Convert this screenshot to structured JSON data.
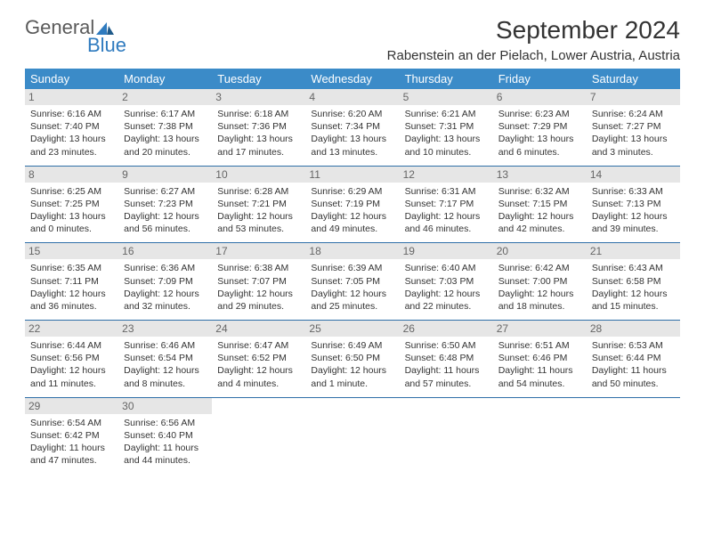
{
  "logo": {
    "general": "General",
    "blue": "Blue"
  },
  "title": "September 2024",
  "location": "Rabenstein an der Pielach, Lower Austria, Austria",
  "header_bg": "#3b8bc8",
  "daynum_bg": "#e6e6e6",
  "border_color": "#2f6fa8",
  "weekdays": [
    "Sunday",
    "Monday",
    "Tuesday",
    "Wednesday",
    "Thursday",
    "Friday",
    "Saturday"
  ],
  "days": [
    {
      "n": "1",
      "sr": "6:16 AM",
      "ss": "7:40 PM",
      "dl": "13 hours and 23 minutes."
    },
    {
      "n": "2",
      "sr": "6:17 AM",
      "ss": "7:38 PM",
      "dl": "13 hours and 20 minutes."
    },
    {
      "n": "3",
      "sr": "6:18 AM",
      "ss": "7:36 PM",
      "dl": "13 hours and 17 minutes."
    },
    {
      "n": "4",
      "sr": "6:20 AM",
      "ss": "7:34 PM",
      "dl": "13 hours and 13 minutes."
    },
    {
      "n": "5",
      "sr": "6:21 AM",
      "ss": "7:31 PM",
      "dl": "13 hours and 10 minutes."
    },
    {
      "n": "6",
      "sr": "6:23 AM",
      "ss": "7:29 PM",
      "dl": "13 hours and 6 minutes."
    },
    {
      "n": "7",
      "sr": "6:24 AM",
      "ss": "7:27 PM",
      "dl": "13 hours and 3 minutes."
    },
    {
      "n": "8",
      "sr": "6:25 AM",
      "ss": "7:25 PM",
      "dl": "13 hours and 0 minutes."
    },
    {
      "n": "9",
      "sr": "6:27 AM",
      "ss": "7:23 PM",
      "dl": "12 hours and 56 minutes."
    },
    {
      "n": "10",
      "sr": "6:28 AM",
      "ss": "7:21 PM",
      "dl": "12 hours and 53 minutes."
    },
    {
      "n": "11",
      "sr": "6:29 AM",
      "ss": "7:19 PM",
      "dl": "12 hours and 49 minutes."
    },
    {
      "n": "12",
      "sr": "6:31 AM",
      "ss": "7:17 PM",
      "dl": "12 hours and 46 minutes."
    },
    {
      "n": "13",
      "sr": "6:32 AM",
      "ss": "7:15 PM",
      "dl": "12 hours and 42 minutes."
    },
    {
      "n": "14",
      "sr": "6:33 AM",
      "ss": "7:13 PM",
      "dl": "12 hours and 39 minutes."
    },
    {
      "n": "15",
      "sr": "6:35 AM",
      "ss": "7:11 PM",
      "dl": "12 hours and 36 minutes."
    },
    {
      "n": "16",
      "sr": "6:36 AM",
      "ss": "7:09 PM",
      "dl": "12 hours and 32 minutes."
    },
    {
      "n": "17",
      "sr": "6:38 AM",
      "ss": "7:07 PM",
      "dl": "12 hours and 29 minutes."
    },
    {
      "n": "18",
      "sr": "6:39 AM",
      "ss": "7:05 PM",
      "dl": "12 hours and 25 minutes."
    },
    {
      "n": "19",
      "sr": "6:40 AM",
      "ss": "7:03 PM",
      "dl": "12 hours and 22 minutes."
    },
    {
      "n": "20",
      "sr": "6:42 AM",
      "ss": "7:00 PM",
      "dl": "12 hours and 18 minutes."
    },
    {
      "n": "21",
      "sr": "6:43 AM",
      "ss": "6:58 PM",
      "dl": "12 hours and 15 minutes."
    },
    {
      "n": "22",
      "sr": "6:44 AM",
      "ss": "6:56 PM",
      "dl": "12 hours and 11 minutes."
    },
    {
      "n": "23",
      "sr": "6:46 AM",
      "ss": "6:54 PM",
      "dl": "12 hours and 8 minutes."
    },
    {
      "n": "24",
      "sr": "6:47 AM",
      "ss": "6:52 PM",
      "dl": "12 hours and 4 minutes."
    },
    {
      "n": "25",
      "sr": "6:49 AM",
      "ss": "6:50 PM",
      "dl": "12 hours and 1 minute."
    },
    {
      "n": "26",
      "sr": "6:50 AM",
      "ss": "6:48 PM",
      "dl": "11 hours and 57 minutes."
    },
    {
      "n": "27",
      "sr": "6:51 AM",
      "ss": "6:46 PM",
      "dl": "11 hours and 54 minutes."
    },
    {
      "n": "28",
      "sr": "6:53 AM",
      "ss": "6:44 PM",
      "dl": "11 hours and 50 minutes."
    },
    {
      "n": "29",
      "sr": "6:54 AM",
      "ss": "6:42 PM",
      "dl": "11 hours and 47 minutes."
    },
    {
      "n": "30",
      "sr": "6:56 AM",
      "ss": "6:40 PM",
      "dl": "11 hours and 44 minutes."
    }
  ],
  "labels": {
    "sunrise": "Sunrise:",
    "sunset": "Sunset:",
    "daylight": "Daylight:"
  }
}
